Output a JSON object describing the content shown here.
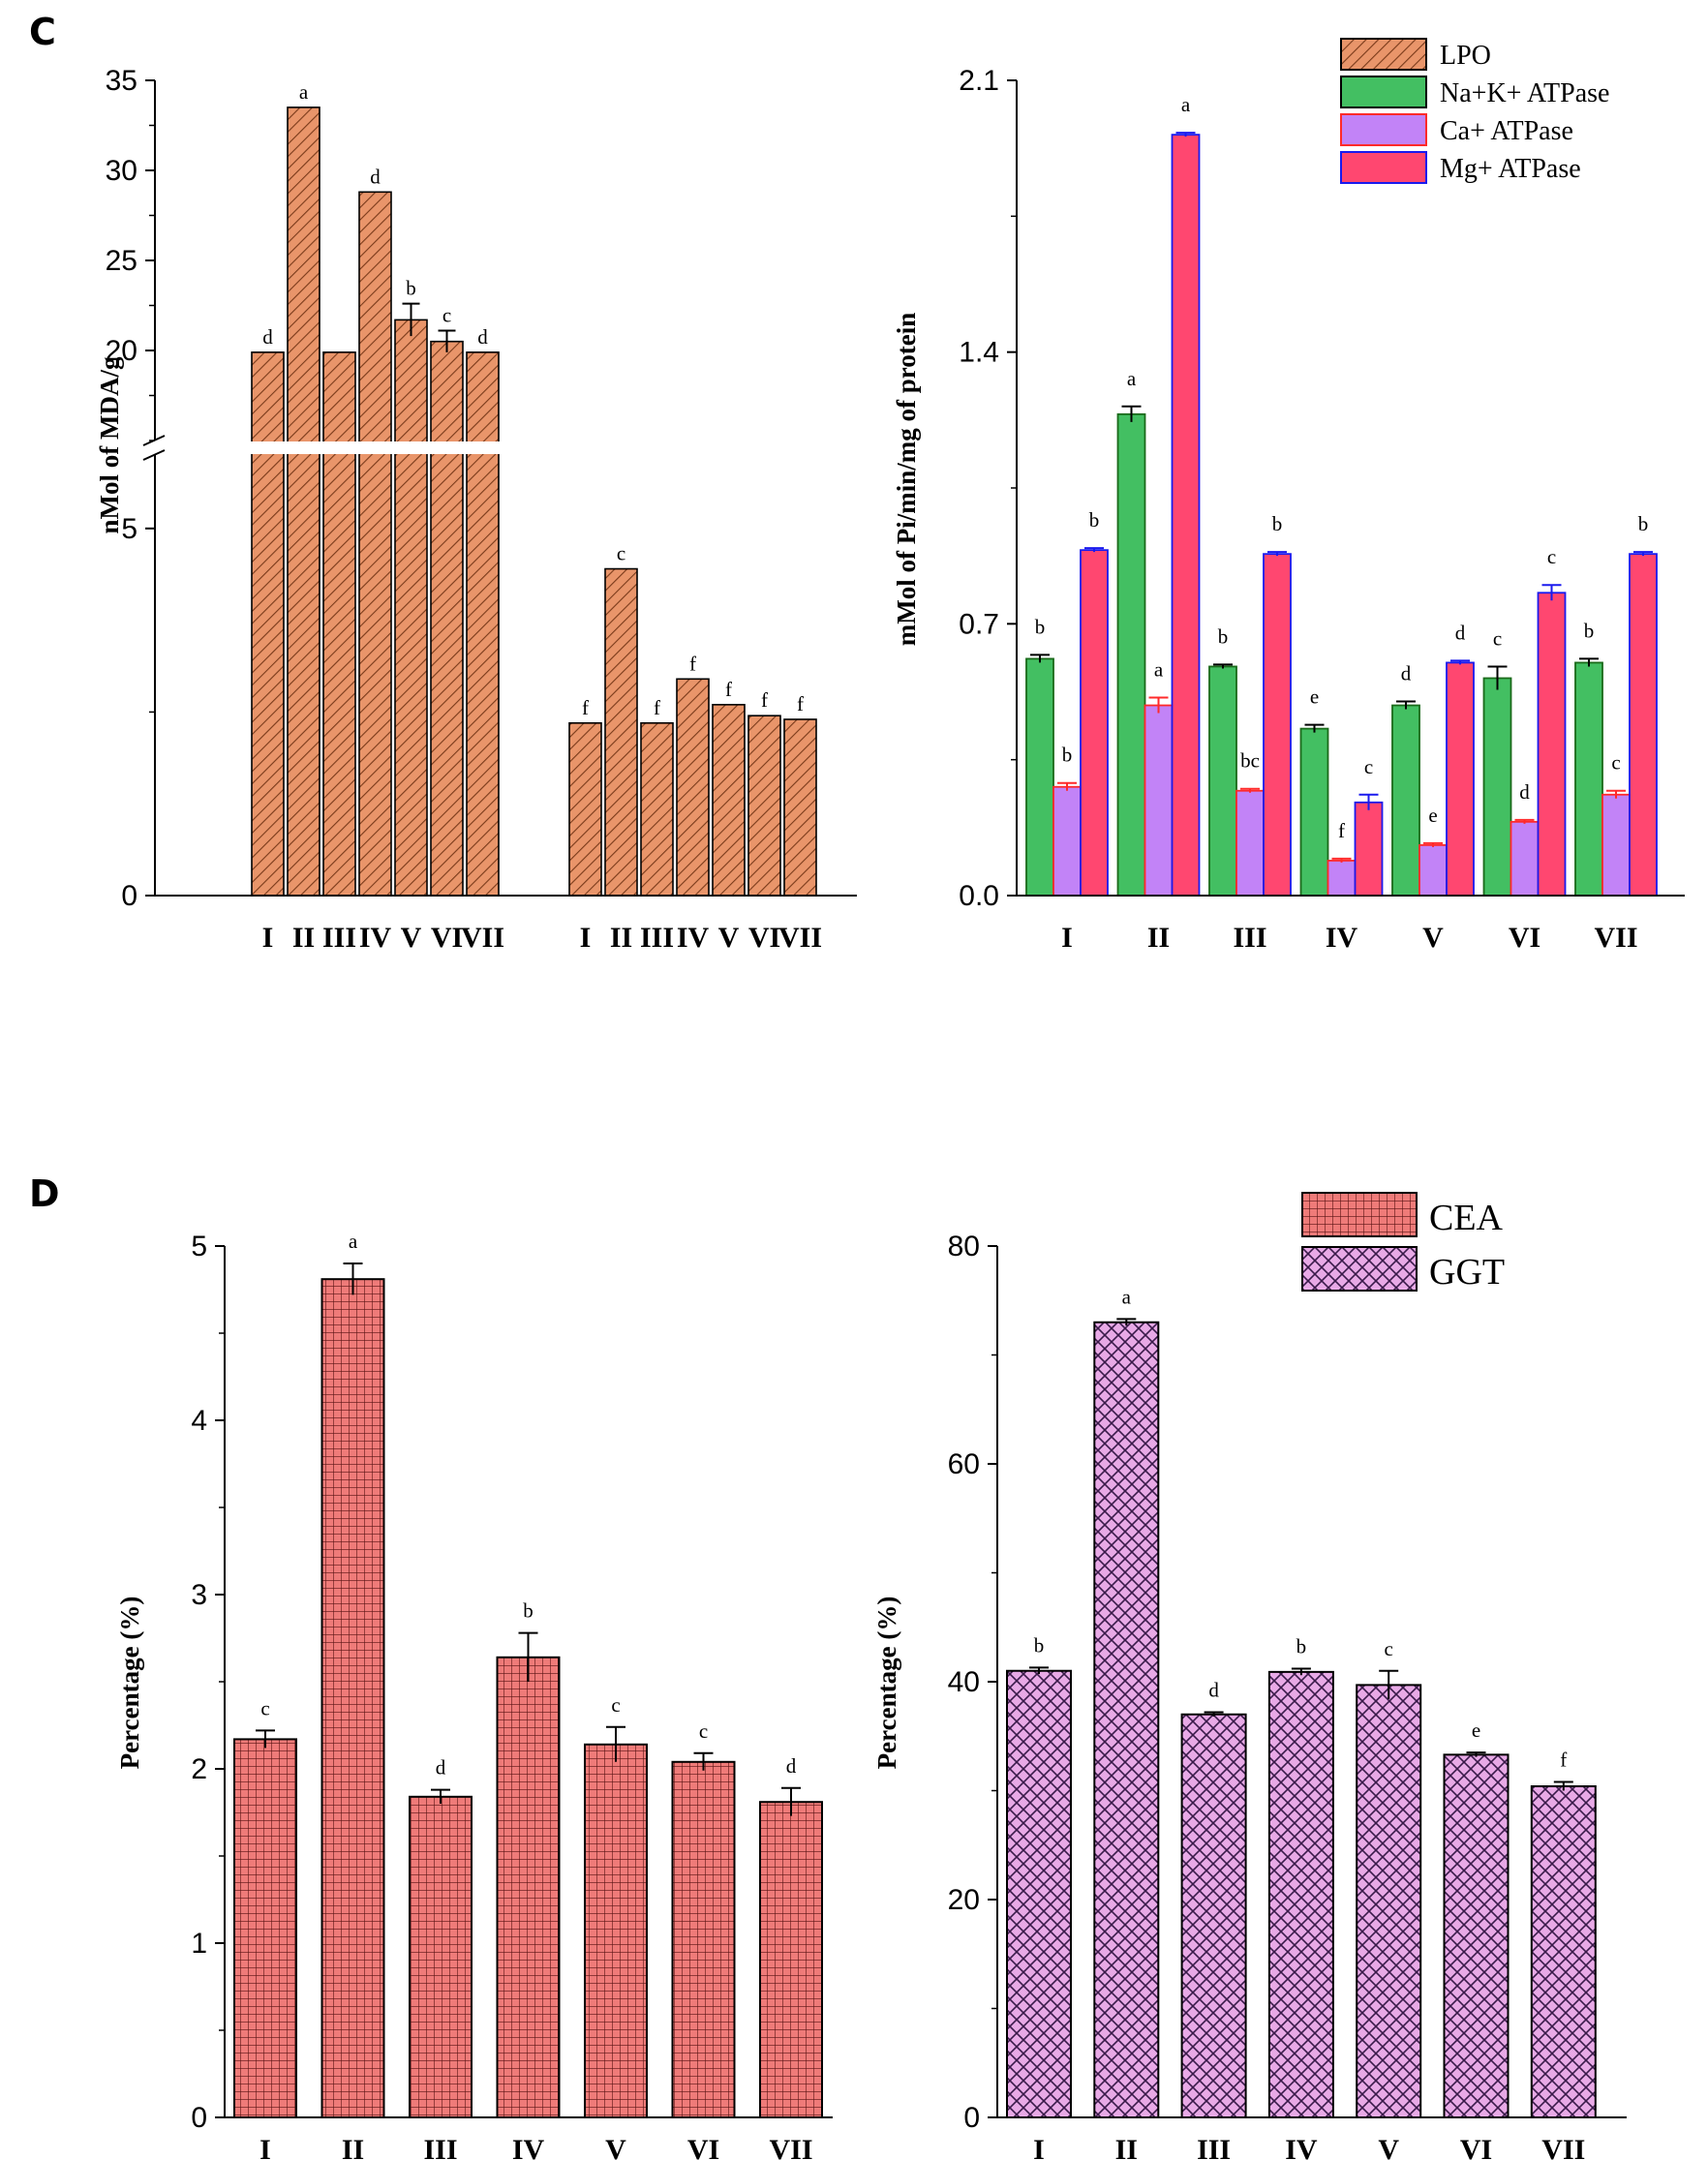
{
  "panels": {
    "c": "C",
    "d": "D"
  },
  "colors": {
    "lpo": "#e9956a",
    "nak": "#43bf62",
    "ca": "#c283f7",
    "mg": "#ff4770",
    "cea": "#ef7b79",
    "ggt": "#e8a9e6"
  },
  "chart_data": [
    {
      "id": "lpo",
      "type": "bar",
      "title": "",
      "ylabel": "nMol of MDA/g",
      "broken_axis": true,
      "upper_ylim": [
        15,
        35
      ],
      "lower_ylim": [
        0,
        6
      ],
      "upper_ticks": [
        "20",
        "25",
        "30",
        "35"
      ],
      "lower_ticks": [
        "0",
        "5"
      ],
      "legend": "LPO",
      "groups": [
        {
          "categories": [
            "I",
            "II",
            "III",
            "IV",
            "V",
            "VI",
            "VII"
          ],
          "values": [
            19.9,
            33.5,
            19.9,
            28.8,
            21.7,
            20.5,
            19.9
          ],
          "errors": [
            0,
            0,
            0,
            0,
            0.9,
            0.6,
            0
          ],
          "letters": [
            "d",
            "a",
            "",
            "d",
            "b",
            "c",
            "d"
          ]
        },
        {
          "categories": [
            "I",
            "II",
            "III",
            "IV",
            "V",
            "VI",
            "VII"
          ],
          "values": [
            2.35,
            4.45,
            2.35,
            2.95,
            2.6,
            2.45,
            2.4
          ],
          "errors": [
            0,
            0,
            0,
            0,
            0,
            0,
            0
          ],
          "letters": [
            "f",
            "c",
            "f",
            "f",
            "f",
            "f",
            "f"
          ]
        }
      ]
    },
    {
      "id": "atpase",
      "type": "bar",
      "title": "",
      "ylabel": "mMol of Pi/min/mg of protein",
      "ylim": [
        0,
        2.1
      ],
      "ticks": [
        "0.0",
        "0.7",
        "1.4",
        "2.1"
      ],
      "categories": [
        "I",
        "II",
        "III",
        "IV",
        "V",
        "VI",
        "VII"
      ],
      "series": [
        {
          "name": "Na+K+ ATPase",
          "values": [
            0.61,
            1.24,
            0.59,
            0.43,
            0.49,
            0.56,
            0.6
          ],
          "errors": [
            0.01,
            0.02,
            0.005,
            0.01,
            0.01,
            0.03,
            0.01
          ],
          "letters": [
            "b",
            "a",
            "b",
            "e",
            "d",
            "c",
            "b"
          ]
        },
        {
          "name": "Ca+ ATPase",
          "values": [
            0.28,
            0.49,
            0.27,
            0.09,
            0.13,
            0.19,
            0.26
          ],
          "errors": [
            0.01,
            0.02,
            0.005,
            0.005,
            0.005,
            0.005,
            0.01
          ],
          "letters": [
            "b",
            "a",
            "bc",
            "f",
            "e",
            "d",
            "c"
          ]
        },
        {
          "name": "Mg+ ATPase",
          "values": [
            0.89,
            1.96,
            0.88,
            0.24,
            0.6,
            0.78,
            0.88
          ],
          "errors": [
            0.005,
            0.005,
            0.005,
            0.02,
            0.005,
            0.02,
            0.005
          ],
          "letters": [
            "b",
            "a",
            "b",
            "c",
            "d",
            "c",
            "b"
          ]
        }
      ],
      "legend": [
        "LPO",
        "Na+K+ ATPase",
        "Ca+ ATPase",
        "Mg+ ATPase"
      ]
    },
    {
      "id": "cea",
      "type": "bar",
      "title": "",
      "ylabel": "Percentage (%)",
      "ylim": [
        0,
        5
      ],
      "ticks": [
        "0",
        "1",
        "2",
        "3",
        "4",
        "5"
      ],
      "categories": [
        "I",
        "II",
        "III",
        "IV",
        "V",
        "VI",
        "VII"
      ],
      "values": [
        2.17,
        4.81,
        1.84,
        2.64,
        2.14,
        2.04,
        1.81
      ],
      "errors": [
        0.05,
        0.09,
        0.04,
        0.14,
        0.1,
        0.05,
        0.08
      ],
      "letters": [
        "c",
        "a",
        "d",
        "b",
        "c",
        "c",
        "d"
      ],
      "legend": "CEA"
    },
    {
      "id": "ggt",
      "type": "bar",
      "title": "",
      "ylabel": "Percentage (%)",
      "ylim": [
        0,
        80
      ],
      "ticks": [
        "0",
        "20",
        "40",
        "60",
        "80"
      ],
      "categories": [
        "I",
        "II",
        "III",
        "IV",
        "V",
        "VI",
        "VII"
      ],
      "values": [
        41.0,
        73.0,
        37.0,
        40.9,
        39.7,
        33.3,
        30.4
      ],
      "errors": [
        0.3,
        0.3,
        0.2,
        0.3,
        1.3,
        0.2,
        0.4
      ],
      "letters": [
        "b",
        "a",
        "d",
        "b",
        "c",
        "e",
        "f"
      ],
      "legend": "GGT"
    }
  ]
}
